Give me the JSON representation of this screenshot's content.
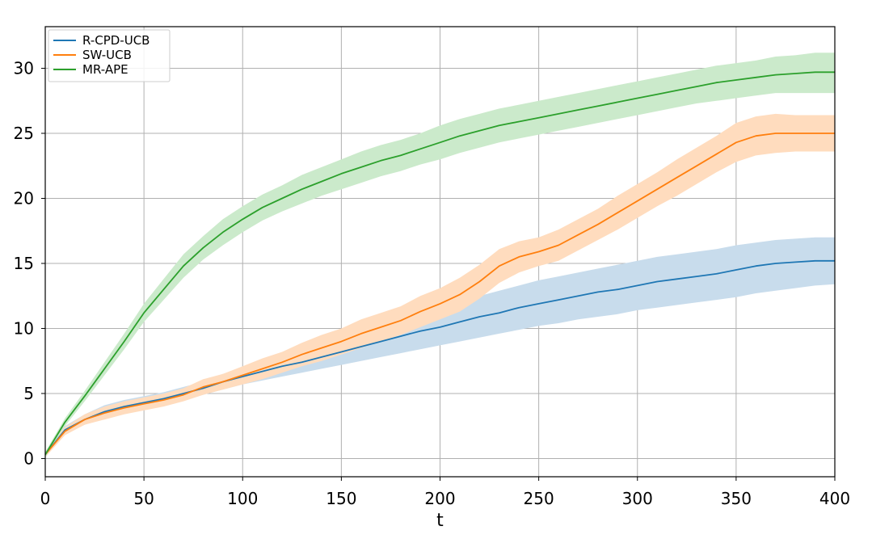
{
  "chart_data": {
    "type": "line",
    "title": "",
    "xlabel": "t",
    "ylabel": "",
    "xlim": [
      0,
      400
    ],
    "ylim": [
      -1.4,
      33.2
    ],
    "xticks": [
      "0",
      "50",
      "100",
      "150",
      "200",
      "250",
      "300",
      "350",
      "400"
    ],
    "yticks": [
      "0",
      "5",
      "10",
      "15",
      "20",
      "25",
      "30"
    ],
    "grid": true,
    "legend_position": "top-left",
    "x": [
      0,
      10,
      20,
      30,
      40,
      50,
      60,
      70,
      80,
      90,
      100,
      110,
      120,
      130,
      140,
      150,
      160,
      170,
      180,
      190,
      200,
      210,
      220,
      230,
      240,
      250,
      260,
      270,
      280,
      290,
      300,
      310,
      320,
      330,
      340,
      350,
      360,
      370,
      380,
      390,
      400
    ],
    "series": [
      {
        "name": "R-CPD-UCB",
        "color": "#1f77b4",
        "fill": "#c8dcec",
        "mean": [
          0.3,
          2.2,
          3.0,
          3.6,
          4.0,
          4.3,
          4.6,
          5.0,
          5.4,
          5.9,
          6.3,
          6.7,
          7.1,
          7.4,
          7.8,
          8.2,
          8.6,
          9.0,
          9.4,
          9.8,
          10.1,
          10.5,
          10.9,
          11.2,
          11.6,
          11.9,
          12.2,
          12.5,
          12.8,
          13.0,
          13.3,
          13.6,
          13.8,
          14.0,
          14.2,
          14.5,
          14.8,
          15.0,
          15.1,
          15.2,
          15.2
        ],
        "lower": [
          0.1,
          1.9,
          2.6,
          3.1,
          3.5,
          3.8,
          4.1,
          4.5,
          4.9,
          5.3,
          5.7,
          6.0,
          6.3,
          6.6,
          6.9,
          7.2,
          7.5,
          7.8,
          8.1,
          8.4,
          8.7,
          9.0,
          9.3,
          9.6,
          9.9,
          10.2,
          10.4,
          10.7,
          10.9,
          11.1,
          11.4,
          11.6,
          11.8,
          12.0,
          12.2,
          12.4,
          12.7,
          12.9,
          13.1,
          13.3,
          13.4
        ],
        "upper": [
          0.5,
          2.5,
          3.4,
          4.1,
          4.5,
          4.8,
          5.1,
          5.5,
          5.9,
          6.5,
          6.9,
          7.4,
          7.9,
          8.3,
          8.7,
          9.2,
          9.7,
          10.2,
          10.7,
          11.1,
          11.5,
          12.0,
          12.5,
          12.9,
          13.3,
          13.7,
          14.0,
          14.3,
          14.6,
          14.9,
          15.2,
          15.5,
          15.7,
          15.9,
          16.1,
          16.4,
          16.6,
          16.8,
          16.9,
          17.0,
          17.0
        ]
      },
      {
        "name": "SW-UCB",
        "color": "#ff7f0e",
        "fill": "#ffdcbe",
        "mean": [
          0.3,
          2.1,
          3.0,
          3.5,
          3.9,
          4.2,
          4.5,
          4.9,
          5.5,
          5.9,
          6.4,
          6.9,
          7.4,
          8.0,
          8.5,
          9.0,
          9.6,
          10.1,
          10.6,
          11.3,
          11.9,
          12.6,
          13.6,
          14.8,
          15.5,
          15.9,
          16.4,
          17.2,
          18.0,
          18.9,
          19.8,
          20.7,
          21.6,
          22.5,
          23.4,
          24.3,
          24.8,
          25.0,
          25.0,
          25.0,
          25.0
        ],
        "lower": [
          0.1,
          1.8,
          2.6,
          3.0,
          3.4,
          3.7,
          4.0,
          4.4,
          4.9,
          5.3,
          5.7,
          6.1,
          6.6,
          7.1,
          7.5,
          8.0,
          8.5,
          9.0,
          9.5,
          10.1,
          10.7,
          11.3,
          12.3,
          13.5,
          14.3,
          14.8,
          15.2,
          16.0,
          16.8,
          17.6,
          18.5,
          19.4,
          20.2,
          21.1,
          22.0,
          22.8,
          23.3,
          23.5,
          23.6,
          23.6,
          23.6
        ],
        "upper": [
          0.5,
          2.4,
          3.4,
          4.0,
          4.4,
          4.7,
          5.0,
          5.4,
          6.1,
          6.5,
          7.1,
          7.7,
          8.2,
          8.9,
          9.5,
          10.0,
          10.7,
          11.2,
          11.7,
          12.5,
          13.1,
          13.9,
          14.9,
          16.1,
          16.7,
          17.0,
          17.6,
          18.4,
          19.2,
          20.2,
          21.1,
          22.0,
          23.0,
          23.9,
          24.8,
          25.8,
          26.3,
          26.5,
          26.4,
          26.4,
          26.4
        ]
      },
      {
        "name": "MR-APE",
        "color": "#2ca02c",
        "fill": "#cbeacb",
        "mean": [
          0.3,
          2.8,
          4.8,
          6.9,
          9.0,
          11.2,
          13.0,
          14.8,
          16.2,
          17.4,
          18.4,
          19.3,
          20.0,
          20.7,
          21.3,
          21.9,
          22.4,
          22.9,
          23.3,
          23.8,
          24.3,
          24.8,
          25.2,
          25.6,
          25.9,
          26.2,
          26.5,
          26.8,
          27.1,
          27.4,
          27.7,
          28.0,
          28.3,
          28.6,
          28.9,
          29.1,
          29.3,
          29.5,
          29.6,
          29.7,
          29.7
        ],
        "lower": [
          0.1,
          2.5,
          4.4,
          6.4,
          8.4,
          10.5,
          12.2,
          13.9,
          15.3,
          16.4,
          17.4,
          18.3,
          19.0,
          19.6,
          20.2,
          20.7,
          21.2,
          21.7,
          22.1,
          22.6,
          23.0,
          23.5,
          23.9,
          24.3,
          24.6,
          24.9,
          25.2,
          25.5,
          25.8,
          26.1,
          26.4,
          26.7,
          27.0,
          27.3,
          27.5,
          27.7,
          27.9,
          28.1,
          28.1,
          28.1,
          28.1
        ],
        "upper": [
          0.5,
          3.1,
          5.2,
          7.4,
          9.6,
          11.9,
          13.8,
          15.7,
          17.1,
          18.4,
          19.4,
          20.3,
          21.0,
          21.8,
          22.4,
          23.0,
          23.6,
          24.1,
          24.5,
          25.0,
          25.6,
          26.1,
          26.5,
          26.9,
          27.2,
          27.5,
          27.8,
          28.1,
          28.4,
          28.7,
          29.0,
          29.3,
          29.6,
          29.9,
          30.2,
          30.4,
          30.6,
          30.9,
          31.0,
          31.2,
          31.2
        ]
      }
    ]
  }
}
